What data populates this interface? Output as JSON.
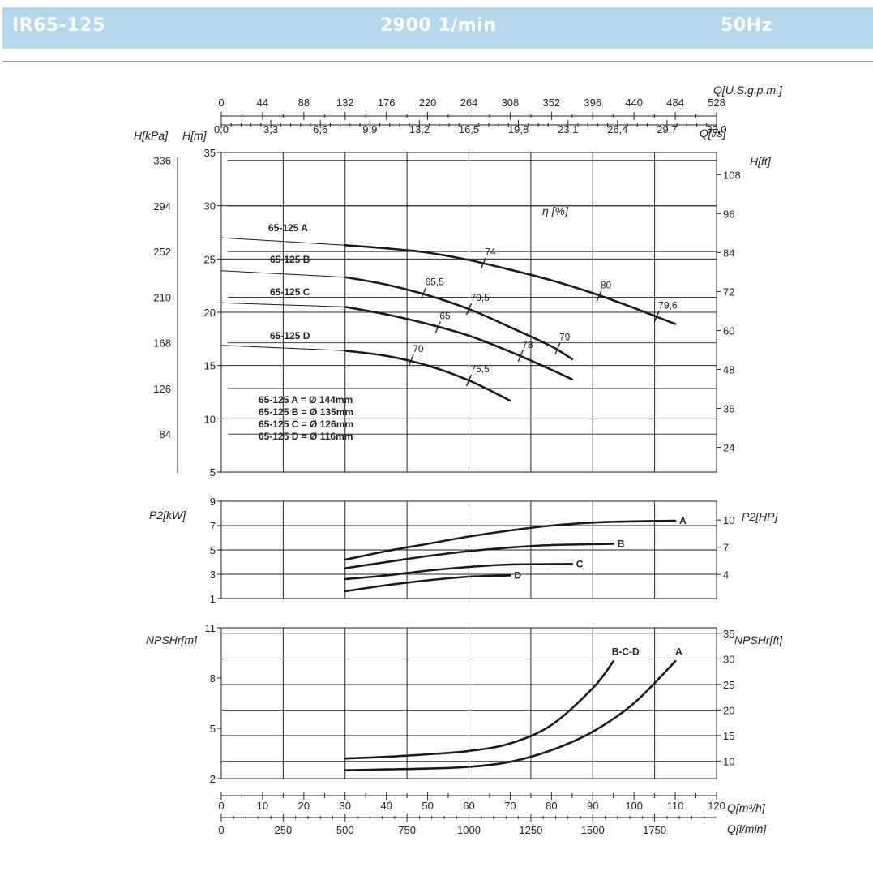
{
  "header": {
    "model": "IR65-125",
    "speed": "2900 1/min",
    "frequency": "50Hz",
    "background_color": "#b5d7ea"
  },
  "units": {
    "q_usgpm": "Q[U.S.g.p.m.]",
    "q_ls": "Q[l/s]",
    "q_m3h": "Q[m³/h]",
    "q_lmin": "Q[l/min]",
    "h_kpa": "H[kPa]",
    "h_m": "H[m]",
    "h_ft": "H[ft]",
    "eta": "η [%]",
    "p2_kw": "P2[kW]",
    "p2_hp": "P2[HP]",
    "npsh_m": "NPSHr[m]",
    "npsh_ft": "NPSHr[ft]"
  },
  "legend_lines": [
    "65-125 A = Ø 144mm",
    "65-125 B = Ø 135mm",
    "65-125 C = Ø 126mm",
    "65-125 D = Ø 116mm"
  ],
  "chart_data": [
    {
      "type": "line",
      "title": "",
      "xlabel": "Q[m³/h]",
      "ylabel": "H[m]",
      "xlim": [
        0,
        120
      ],
      "ylim": [
        5,
        35
      ],
      "grid": true,
      "x_ticks_m3h": [
        "0",
        "10",
        "20",
        "30",
        "40",
        "50",
        "60",
        "70",
        "80",
        "90",
        "100",
        "110",
        "120"
      ],
      "x_ticks_lmin": [
        "0",
        "250",
        "500",
        "750",
        "1000",
        "1250",
        "1500",
        "1750"
      ],
      "x_ticks_usgpm": [
        "0",
        "44",
        "88",
        "132",
        "176",
        "220",
        "264",
        "308",
        "352",
        "396",
        "440",
        "484",
        "528"
      ],
      "x_ticks_ls": [
        "0,0",
        "3,3",
        "6,6",
        "9,9",
        "13,2",
        "16,5",
        "19,8",
        "23,1",
        "26,4",
        "29,7",
        "33,0"
      ],
      "y_ticks_m": [
        "5",
        "10",
        "15",
        "20",
        "25",
        "30",
        "35"
      ],
      "y_ticks_kpa": [
        "84",
        "126",
        "168",
        "210",
        "252",
        "294",
        "336"
      ],
      "y_ticks_ft": [
        "24",
        "36",
        "48",
        "60",
        "72",
        "84",
        "96",
        "108"
      ],
      "series": [
        {
          "name": "65-125 A",
          "thin_x": [
            0,
            30
          ],
          "thin_y": [
            27.0,
            26.3
          ],
          "x": [
            30,
            40,
            50,
            60,
            70,
            80,
            90,
            100,
            110
          ],
          "y": [
            26.3,
            26.0,
            25.6,
            24.9,
            24.0,
            23.0,
            21.8,
            20.4,
            18.9
          ]
        },
        {
          "name": "65-125 B",
          "thin_x": [
            0,
            30
          ],
          "thin_y": [
            23.9,
            23.3
          ],
          "x": [
            30,
            40,
            50,
            60,
            70,
            80,
            85
          ],
          "y": [
            23.3,
            22.6,
            21.6,
            20.3,
            18.6,
            16.8,
            15.6
          ]
        },
        {
          "name": "65-125 C",
          "thin_x": [
            0,
            30
          ],
          "thin_y": [
            20.9,
            20.5
          ],
          "x": [
            30,
            40,
            50,
            60,
            70,
            80,
            85
          ],
          "y": [
            20.5,
            19.8,
            18.9,
            17.8,
            16.3,
            14.6,
            13.7
          ]
        },
        {
          "name": "65-125 D",
          "thin_x": [
            0,
            30
          ],
          "thin_y": [
            16.9,
            16.4
          ],
          "x": [
            30,
            40,
            50,
            60,
            70
          ],
          "y": [
            16.4,
            15.9,
            15.0,
            13.6,
            11.7
          ]
        }
      ],
      "efficiency_marks": [
        {
          "label": "74",
          "x": 63.5,
          "y": 24.6
        },
        {
          "label": "80",
          "x": 91.5,
          "y": 21.5
        },
        {
          "label": "79,6",
          "x": 105.5,
          "y": 19.6
        },
        {
          "label": "65,5",
          "x": 49,
          "y": 21.8
        },
        {
          "label": "70,5",
          "x": 60,
          "y": 20.3
        },
        {
          "label": "79",
          "x": 81.5,
          "y": 16.6
        },
        {
          "label": "65",
          "x": 52.5,
          "y": 18.6
        },
        {
          "label": "78",
          "x": 72.5,
          "y": 15.9
        },
        {
          "label": "70",
          "x": 46,
          "y": 15.5
        },
        {
          "label": "75,5",
          "x": 60,
          "y": 13.6
        }
      ]
    },
    {
      "type": "line",
      "xlabel": "Q[m³/h]",
      "ylabel": "P2[kW]",
      "xlim": [
        0,
        120
      ],
      "ylim": [
        1,
        9
      ],
      "grid": true,
      "y_ticks_kw": [
        "1",
        "3",
        "5",
        "7",
        "9"
      ],
      "y_ticks_hp": [
        "4",
        "7",
        "10"
      ],
      "series": [
        {
          "name": "A",
          "x": [
            30,
            40,
            50,
            60,
            70,
            80,
            90,
            100,
            110
          ],
          "y": [
            4.2,
            4.9,
            5.5,
            6.1,
            6.6,
            7.0,
            7.25,
            7.35,
            7.4
          ]
        },
        {
          "name": "B",
          "x": [
            30,
            40,
            50,
            60,
            70,
            80,
            95
          ],
          "y": [
            3.5,
            4.0,
            4.5,
            4.9,
            5.2,
            5.4,
            5.5
          ]
        },
        {
          "name": "C",
          "x": [
            30,
            40,
            50,
            60,
            70,
            85
          ],
          "y": [
            2.6,
            2.9,
            3.3,
            3.6,
            3.8,
            3.85
          ]
        },
        {
          "name": "D",
          "x": [
            30,
            40,
            50,
            60,
            70
          ],
          "y": [
            1.6,
            2.1,
            2.5,
            2.8,
            2.9
          ]
        }
      ]
    },
    {
      "type": "line",
      "xlabel": "Q[m³/h]",
      "ylabel": "NPSHr[m]",
      "xlim": [
        0,
        120
      ],
      "ylim": [
        2,
        11
      ],
      "grid": true,
      "y_ticks_m": [
        "2",
        "5",
        "8",
        "11"
      ],
      "y_ticks_ft": [
        "10",
        "15",
        "20",
        "25",
        "30",
        "35"
      ],
      "series": [
        {
          "name": "B-C-D",
          "x": [
            30,
            40,
            50,
            60,
            70,
            80,
            90,
            95
          ],
          "y": [
            3.2,
            3.3,
            3.45,
            3.65,
            4.1,
            5.2,
            7.4,
            9.0
          ]
        },
        {
          "name": "A",
          "x": [
            30,
            40,
            50,
            60,
            70,
            80,
            90,
            100,
            110
          ],
          "y": [
            2.5,
            2.55,
            2.6,
            2.7,
            3.0,
            3.7,
            4.8,
            6.5,
            9.0
          ]
        }
      ]
    }
  ]
}
